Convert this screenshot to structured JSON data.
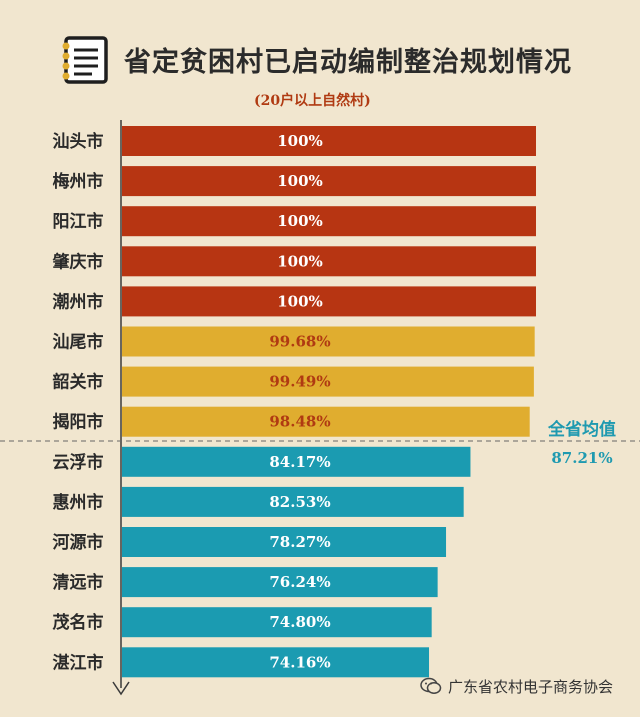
{
  "title": "省定贫困村已启动编制整治规划情况",
  "subtitle": "(20户以上自然村)",
  "watermark": "广东省农村电子商务协会",
  "icons": {
    "title_icon": "notebook-icon",
    "watermark_icon": "wechat-icon"
  },
  "colors": {
    "tier_full": "#b73512",
    "tier_high": "#e0ad2f",
    "tier_low": "#1b9bb1",
    "high_text": "#b03a12"
  },
  "chart_data": {
    "type": "bar",
    "orientation": "horizontal",
    "categories": [
      "汕头市",
      "梅州市",
      "阳江市",
      "肇庆市",
      "潮州市",
      "汕尾市",
      "韶关市",
      "揭阳市",
      "云浮市",
      "惠州市",
      "河源市",
      "清远市",
      "茂名市",
      "湛江市"
    ],
    "values": [
      100,
      100,
      100,
      100,
      100,
      99.68,
      99.49,
      98.48,
      84.17,
      82.53,
      78.27,
      76.24,
      74.8,
      74.16
    ],
    "value_labels": [
      "100%",
      "100%",
      "100%",
      "100%",
      "100%",
      "99.68%",
      "99.49%",
      "98.48%",
      "84.17%",
      "82.53%",
      "78.27%",
      "76.24%",
      "74.80%",
      "74.16%"
    ],
    "tiers": [
      "full",
      "full",
      "full",
      "full",
      "full",
      "high",
      "high",
      "high",
      "low",
      "low",
      "low",
      "low",
      "low",
      "low"
    ],
    "reference_line": {
      "label": "全省均值",
      "value_label": "87.21%",
      "value": 87.21,
      "style": "dashed"
    },
    "unit": "%"
  }
}
